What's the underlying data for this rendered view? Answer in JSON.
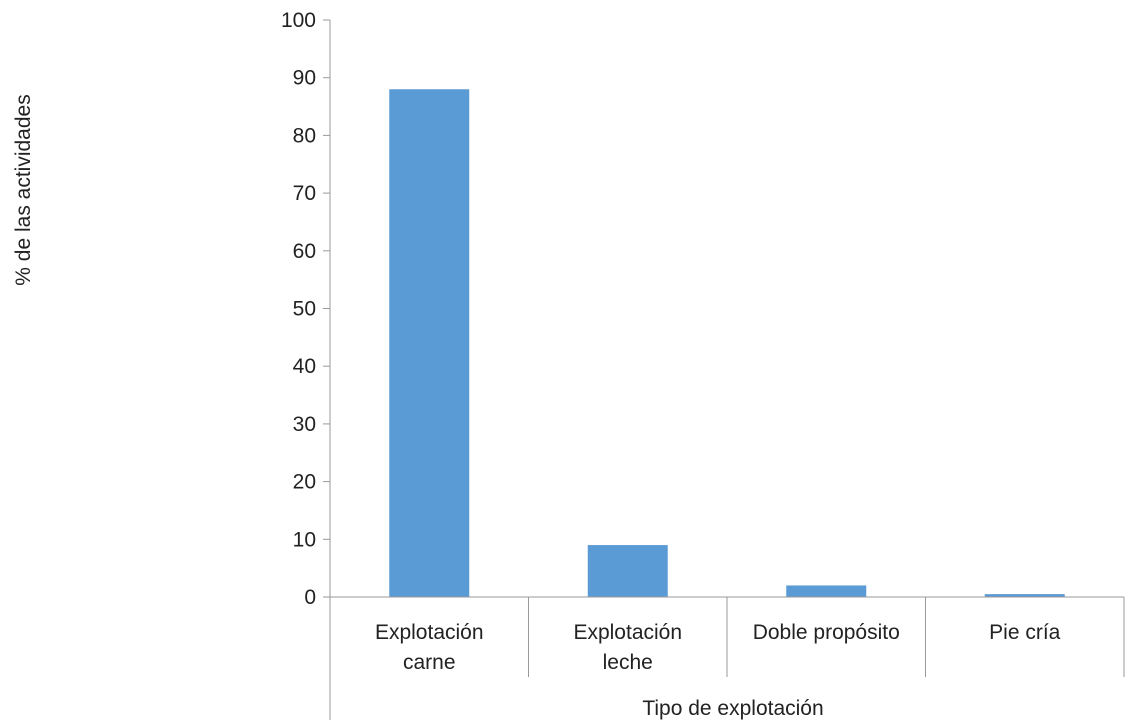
{
  "chart_data": {
    "type": "bar",
    "categories": [
      [
        "Explotación",
        "carne"
      ],
      [
        "Explotación",
        "leche"
      ],
      [
        "Doble propósito"
      ],
      [
        "Pie cría"
      ]
    ],
    "values": [
      88,
      9,
      2,
      0.5
    ],
    "xlabel": "Tipo de explotación",
    "ylabel": "% de las actividades",
    "ylim": [
      0,
      100
    ],
    "yticks": [
      "0",
      "10",
      "20",
      "30",
      "40",
      "50",
      "60",
      "70",
      "80",
      "90",
      "100"
    ],
    "bar_color": "#5b9bd5",
    "axis_color": "#999999",
    "grid": false,
    "legend": "none"
  }
}
